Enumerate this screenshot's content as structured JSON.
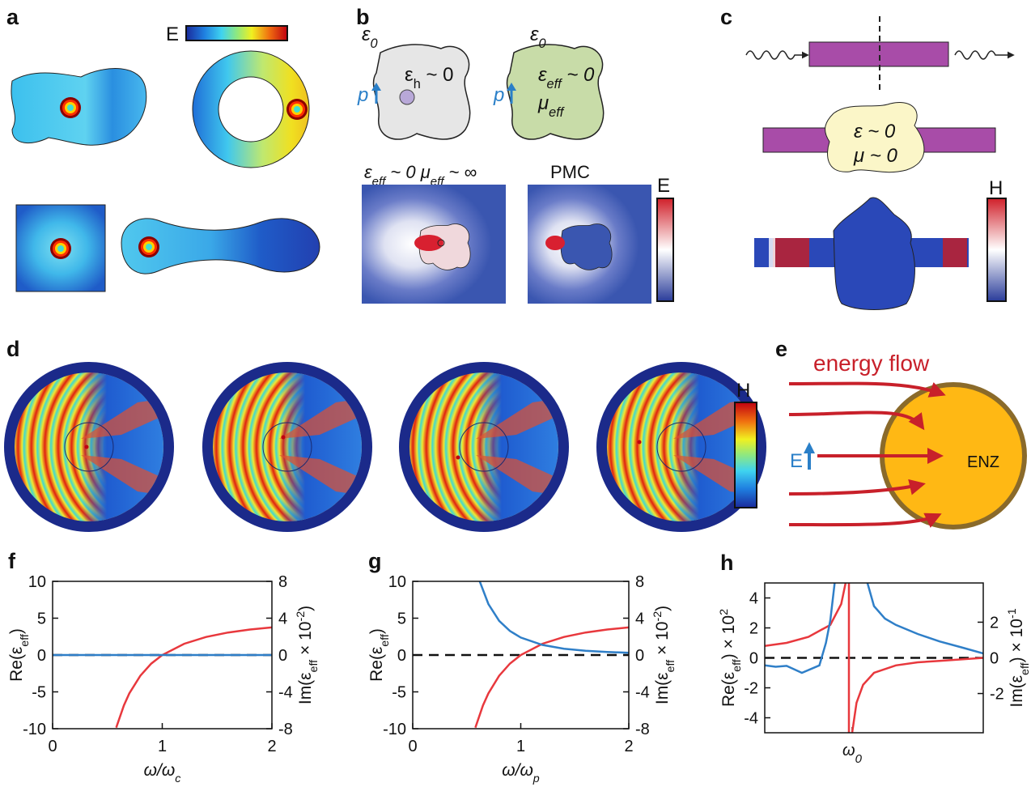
{
  "panels": {
    "a": {
      "label": "a",
      "colorbar_label": "E"
    },
    "b": {
      "label": "b",
      "left": {
        "medium": [
          {
            "text": "ε"
          },
          {
            "sub": "0"
          }
        ],
        "inclusion": [
          {
            "text": "ε"
          },
          {
            "sub": "h"
          },
          {
            "text": " ~ 0"
          }
        ],
        "dipole": "p"
      },
      "right": {
        "medium": [
          {
            "text": "ε"
          },
          {
            "sub": "0"
          }
        ],
        "eps": [
          {
            "text": "ε"
          },
          {
            "sub": "eff"
          },
          {
            "text": " ~ 0"
          }
        ],
        "mu": [
          {
            "text": "μ"
          },
          {
            "sub": "eff"
          }
        ],
        "dipole": "p"
      },
      "map_left_title": [
        {
          "text": "ε"
        },
        {
          "sub": "eff"
        },
        {
          "text": " ~ 0  μ"
        },
        {
          "sub": "eff"
        },
        {
          "text": " ~ ∞"
        }
      ],
      "map_right_title": "PMC",
      "colorbar_label": "E"
    },
    "c": {
      "label": "c",
      "eps": "ε ~ 0",
      "mu": "μ ~ 0",
      "colorbar_label": "H"
    },
    "d": {
      "label": "d",
      "colorbar_label": "H"
    },
    "e": {
      "label": "e",
      "flow": "energy flow",
      "field": "E",
      "material": "ENZ"
    }
  },
  "chart_data": [
    {
      "type": "line",
      "label": "f",
      "xlabel": [
        {
          "text": "ω/ω"
        },
        {
          "sub": "c"
        }
      ],
      "ylabel": [
        {
          "text": "Re(ε"
        },
        {
          "sub": "eff"
        },
        {
          "text": ")"
        }
      ],
      "y2label": [
        {
          "text": "Im(ε"
        },
        {
          "sub": "eff"
        },
        {
          "text": " × 10"
        },
        {
          "sup": "-2"
        },
        {
          "text": ")"
        }
      ],
      "xlim": [
        0,
        2
      ],
      "xticks": [
        0,
        1,
        2
      ],
      "ylim": [
        -10,
        10
      ],
      "yticks": [
        -10,
        -5,
        0,
        5,
        10
      ],
      "y2lim": [
        -8,
        8
      ],
      "y2ticks": [
        -8,
        -4,
        0,
        4,
        8
      ],
      "reference_line": 0,
      "series": [
        {
          "color": "#e8383d",
          "x": [
            0.58,
            0.65,
            0.7,
            0.8,
            0.9,
            1,
            1.2,
            1.4,
            1.6,
            1.8,
            2
          ],
          "values": [
            -9.86,
            -6.83,
            -5.2,
            -2.81,
            -1.17,
            0,
            1.53,
            2.45,
            3.05,
            3.46,
            3.75
          ]
        },
        {
          "color": "#2f7fc8",
          "axis": "y2",
          "x": [
            0,
            2
          ],
          "values": [
            0,
            0
          ]
        }
      ]
    },
    {
      "type": "line",
      "label": "g",
      "xlabel": [
        {
          "text": "ω/ω"
        },
        {
          "sub": "p"
        }
      ],
      "ylabel": [
        {
          "text": "Re(ε"
        },
        {
          "sub": "eff"
        },
        {
          "text": ")"
        }
      ],
      "y2label": [
        {
          "text": "Im(ε"
        },
        {
          "sub": "eff"
        },
        {
          "text": " × 10"
        },
        {
          "sup": "-2"
        },
        {
          "text": ")"
        }
      ],
      "xlim": [
        0,
        2
      ],
      "xticks": [
        0,
        1,
        2
      ],
      "ylim": [
        -10,
        10
      ],
      "yticks": [
        -10,
        -5,
        0,
        5,
        10
      ],
      "y2lim": [
        -8,
        8
      ],
      "y2ticks": [
        -8,
        -4,
        0,
        4,
        8
      ],
      "reference_line": 0,
      "series": [
        {
          "color": "#e8383d",
          "x": [
            0.58,
            0.65,
            0.7,
            0.8,
            0.9,
            1,
            1.2,
            1.4,
            1.6,
            1.8,
            2
          ],
          "values": [
            -9.86,
            -6.83,
            -5.2,
            -2.81,
            -1.17,
            0,
            1.53,
            2.45,
            3.05,
            3.46,
            3.75
          ]
        },
        {
          "color": "#2f7fc8",
          "axis": "y2",
          "x": [
            0.62,
            0.7,
            0.8,
            0.9,
            1,
            1.2,
            1.4,
            1.6,
            1.8,
            2
          ],
          "values": [
            8,
            5.54,
            3.71,
            2.61,
            1.9,
            1.1,
            0.69,
            0.46,
            0.33,
            0.24
          ]
        }
      ]
    },
    {
      "type": "line",
      "label": "h",
      "ylabel": [
        {
          "text": "Re(ε"
        },
        {
          "sub": "eff"
        },
        {
          "text": ") × 10"
        },
        {
          "sup": "2"
        }
      ],
      "y2label": [
        {
          "text": "Im(ε"
        },
        {
          "sub": "eff"
        },
        {
          "text": ") × 10"
        },
        {
          "sup": "-1"
        }
      ],
      "xlim": [
        0,
        1
      ],
      "xticks": [
        {
          "value": 0.4,
          "label": [
            {
              "text": "ω"
            },
            {
              "sub": "0"
            }
          ]
        }
      ],
      "ylim": [
        -5,
        5
      ],
      "yticks": [
        -4,
        -2,
        0,
        2,
        4
      ],
      "y2lim": [
        -4.2,
        4.2
      ],
      "y2ticks": [
        -2,
        0,
        2
      ],
      "reference_line": 0,
      "series": [
        {
          "color": "#e8383d",
          "x": [
            0,
            0.1,
            0.2,
            0.3,
            0.35,
            0.37,
            0.38,
            0.385,
            0.385,
            0.39,
            0.4,
            0.42,
            0.45,
            0.5,
            0.6,
            0.7,
            0.8,
            0.9,
            1
          ],
          "values": [
            0.8,
            1.0,
            1.4,
            2.2,
            3.6,
            5,
            null,
            5,
            -5,
            null,
            -5,
            -3,
            -1.8,
            -1.0,
            -0.5,
            -0.3,
            -0.2,
            -0.1,
            0
          ]
        },
        {
          "color": "#2f7fc8",
          "axis": "y2",
          "x": [
            0,
            0.05,
            0.1,
            0.17,
            0.25,
            0.28,
            0.3,
            0.32,
            0.4,
            0.47,
            0.5,
            0.55,
            0.6,
            0.7,
            0.8,
            0.9,
            1
          ],
          "values": [
            -0.42,
            -0.5,
            -0.45,
            -0.84,
            -0.42,
            0.84,
            2.1,
            4.2,
            null,
            4.2,
            2.9,
            2.2,
            1.85,
            1.34,
            0.92,
            0.59,
            0.25
          ]
        }
      ]
    }
  ]
}
